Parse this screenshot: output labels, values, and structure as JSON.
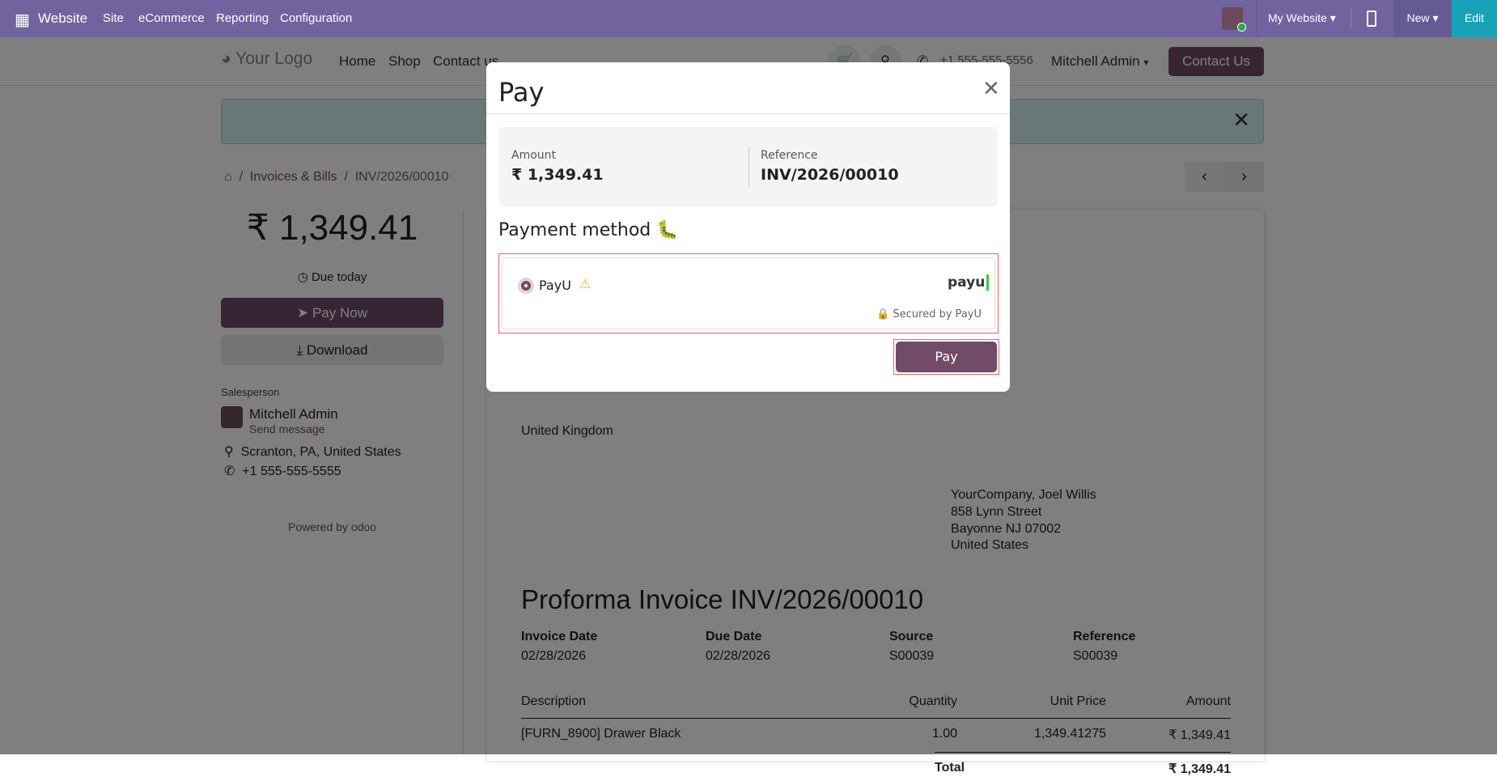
{
  "topbar": {
    "app": "Website",
    "menus": [
      "Site",
      "eCommerce",
      "Reporting",
      "Configuration"
    ],
    "website_selector": "My Website",
    "new_label": "New",
    "edit_label": "Edit",
    "colors": {
      "bar": "#71639e",
      "edit": "#17a2b8"
    }
  },
  "site_header": {
    "logo": "Your Logo",
    "nav": [
      "Home",
      "Shop",
      "Contact us"
    ],
    "phone": "+1 555-555-5556",
    "user": "Mitchell Admin",
    "cta": "Contact Us"
  },
  "breadcrumb": {
    "items": [
      "Invoices & Bills",
      "INV/2026/00010"
    ]
  },
  "sidebar": {
    "amount": "₹ 1,349.41",
    "due": "Due today",
    "pay_now": "Pay Now",
    "download": "Download",
    "salesperson_label": "Salesperson",
    "salesperson": "Mitchell Admin",
    "send_message": "Send message",
    "location": "Scranton, PA, United States",
    "phone": "+1 555-555-5555",
    "powered_by": "Powered by",
    "odoo": "odoo"
  },
  "invoice": {
    "customer_country": "United Kingdom",
    "company_address": [
      "YourCompany, Joel Willis",
      "858 Lynn Street",
      "Bayonne NJ 07002",
      "United States"
    ],
    "title": "Proforma Invoice INV/2026/00010",
    "info": [
      {
        "label": "Invoice Date",
        "value": "02/28/2026"
      },
      {
        "label": "Due Date",
        "value": "02/28/2026"
      },
      {
        "label": "Source",
        "value": "S00039"
      },
      {
        "label": "Reference",
        "value": "S00039"
      }
    ],
    "columns": [
      "Description",
      "Quantity",
      "Unit Price",
      "Amount"
    ],
    "rows": [
      {
        "description": "[FURN_8900] Drawer Black",
        "quantity": "1.00",
        "unit_price": "1,349.41275",
        "amount": "₹ 1,349.41"
      }
    ],
    "total_label": "Total",
    "total": "₹ 1,349.41"
  },
  "modal": {
    "title": "Pay",
    "amount_label": "Amount",
    "amount": "₹ 1,349.41",
    "reference_label": "Reference",
    "reference": "INV/2026/00010",
    "payment_method_title": "Payment method",
    "provider": "PayU",
    "provider_logo": "payu",
    "secured": "Secured by PayU",
    "pay_button": "Pay",
    "accent": "#714b67"
  }
}
